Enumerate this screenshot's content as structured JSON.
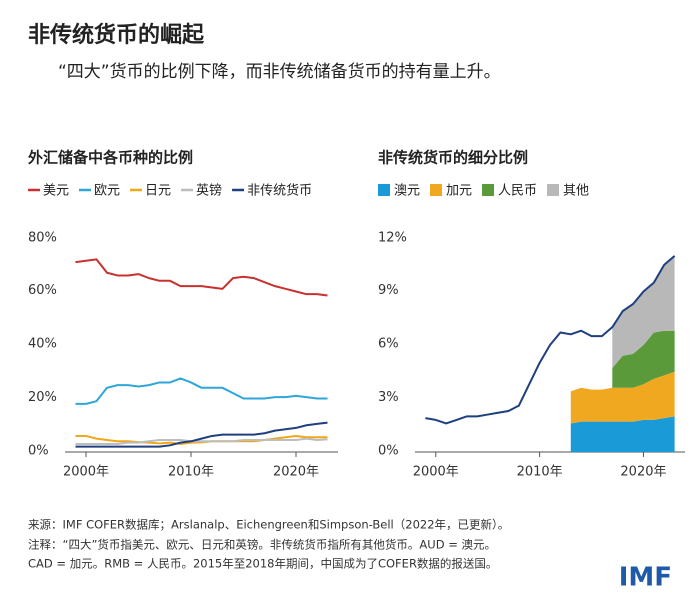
{
  "header": {
    "title": "非传统货币的崛起",
    "subtitle": "“四大”货币的比例下降，而非传统储备货币的持有量上升。"
  },
  "chart_data": [
    {
      "type": "line",
      "title": "外汇储备中各币种的比例",
      "x": [
        1999,
        2000,
        2001,
        2002,
        2003,
        2004,
        2005,
        2006,
        2007,
        2008,
        2009,
        2010,
        2011,
        2012,
        2013,
        2014,
        2015,
        2016,
        2017,
        2018,
        2019,
        2020,
        2021,
        2022,
        2023
      ],
      "series": [
        {
          "name": "美元",
          "color": "#c8312f",
          "values": [
            71,
            71.5,
            72,
            67,
            66,
            66,
            66.5,
            65,
            64,
            64,
            62,
            62,
            62,
            61.5,
            61,
            65,
            65.5,
            65,
            63.5,
            62,
            61,
            60,
            59,
            59,
            58.5
          ]
        },
        {
          "name": "欧元",
          "color": "#2ea6d8",
          "values": [
            18,
            18,
            19,
            24,
            25,
            25,
            24.5,
            25,
            26,
            26,
            27.5,
            26,
            24,
            24,
            24,
            22,
            20,
            20,
            20,
            20.5,
            20.5,
            21,
            20.5,
            20,
            20
          ]
        },
        {
          "name": "日元",
          "color": "#f0a818",
          "values": [
            6,
            6,
            5,
            4.5,
            4,
            4,
            3.7,
            3.5,
            3.2,
            3.5,
            3,
            3.5,
            3.6,
            4,
            4,
            4,
            4,
            4,
            4.5,
            5,
            5.5,
            6,
            5.5,
            5.5,
            5.5
          ]
        },
        {
          "name": "英镑",
          "color": "#bdbdbd",
          "values": [
            3,
            3,
            3,
            3,
            3,
            3.5,
            3.5,
            4,
            4.5,
            4.5,
            4.5,
            4,
            4,
            4,
            4,
            4,
            4.5,
            4.5,
            4.5,
            4.5,
            4.5,
            4.5,
            5,
            4.5,
            4.7
          ]
        },
        {
          "name": "非传统货币",
          "color": "#1f3f7f",
          "values": [
            2,
            2,
            2,
            2,
            2,
            2,
            2,
            2,
            2,
            2.5,
            3.5,
            4,
            5,
            6,
            6.5,
            6.5,
            6.5,
            6.5,
            7,
            8,
            8.5,
            9,
            10,
            10.5,
            11
          ]
        }
      ],
      "xlim": [
        1998,
        2024
      ],
      "xticks": [
        {
          "value": 2000,
          "label": "2000年"
        },
        {
          "value": 2010,
          "label": "2010年"
        },
        {
          "value": 2020,
          "label": "2020年"
        }
      ],
      "ylim": [
        0,
        80
      ],
      "yticks": [
        {
          "value": 0,
          "label": "0%"
        },
        {
          "value": 20,
          "label": "20%"
        },
        {
          "value": 40,
          "label": "40%"
        },
        {
          "value": 60,
          "label": "60%"
        },
        {
          "value": 80,
          "label": "80%"
        }
      ],
      "legend_marker": "line"
    },
    {
      "type": "area",
      "title": "非传统货币的细分比例",
      "x": [
        1999,
        2000,
        2001,
        2002,
        2003,
        2004,
        2005,
        2006,
        2007,
        2008,
        2009,
        2010,
        2011,
        2012,
        2013,
        2014,
        2015,
        2016,
        2017,
        2018,
        2019,
        2020,
        2021,
        2022,
        2023
      ],
      "series": [
        {
          "name": "澳元",
          "color": "#1a9ad6",
          "values": [
            null,
            null,
            null,
            null,
            null,
            null,
            null,
            null,
            null,
            null,
            null,
            null,
            null,
            null,
            1.6,
            1.7,
            1.7,
            1.7,
            1.7,
            1.7,
            1.7,
            1.8,
            1.8,
            1.9,
            2.0
          ]
        },
        {
          "name": "加元",
          "color": "#f0a820",
          "values": [
            null,
            null,
            null,
            null,
            null,
            null,
            null,
            null,
            null,
            null,
            null,
            null,
            null,
            null,
            1.8,
            1.9,
            1.8,
            1.8,
            1.9,
            1.9,
            1.9,
            2.0,
            2.3,
            2.4,
            2.5
          ]
        },
        {
          "name": "人民币",
          "color": "#5a9a3a",
          "values": [
            null,
            null,
            null,
            null,
            null,
            null,
            null,
            null,
            null,
            null,
            null,
            null,
            null,
            null,
            null,
            null,
            null,
            null,
            1.1,
            1.8,
            1.9,
            2.2,
            2.6,
            2.5,
            2.3
          ]
        },
        {
          "name": "其他",
          "color": "#b8b8b8",
          "values": [
            null,
            null,
            null,
            null,
            null,
            null,
            null,
            null,
            null,
            null,
            null,
            null,
            null,
            null,
            null,
            null,
            null,
            null,
            2.3,
            2.5,
            2.8,
            3.0,
            2.8,
            3.7,
            4.2
          ]
        },
        {
          "color": "#1f3f7f",
          "kind": "line",
          "values": [
            1.9,
            1.8,
            1.6,
            1.8,
            2.0,
            2.0,
            2.1,
            2.2,
            2.3,
            2.6,
            3.8,
            5.0,
            6.0,
            6.7,
            6.6,
            6.8,
            6.5,
            6.5,
            7.0,
            7.9,
            8.3,
            9.0,
            9.5,
            10.5,
            11.0
          ]
        }
      ],
      "xlim": [
        1998,
        2024
      ],
      "xticks": [
        {
          "value": 2000,
          "label": "2000年"
        },
        {
          "value": 2010,
          "label": "2010年"
        },
        {
          "value": 2020,
          "label": "2020年"
        }
      ],
      "ylim": [
        0,
        12
      ],
      "yticks": [
        {
          "value": 0,
          "label": "0%"
        },
        {
          "value": 3,
          "label": "3%"
        },
        {
          "value": 6,
          "label": "6%"
        },
        {
          "value": 9,
          "label": "9%"
        },
        {
          "value": 12,
          "label": "12%"
        }
      ],
      "legend_marker": "square"
    }
  ],
  "footer": {
    "notes": [
      "来源：IMF COFER数据库；Arslanalp、Eichengreen和Simpson-Bell（2022年，已更新）。",
      "注释：“四大”货币指美元、欧元、日元和英镑。非传统货币指所有其他货币。AUD = 澳元。",
      "CAD = 加元。RMB = 人民币。2015年至2018年期间，中国成为了COFER数据的报送国。"
    ],
    "logo": "IMF"
  }
}
